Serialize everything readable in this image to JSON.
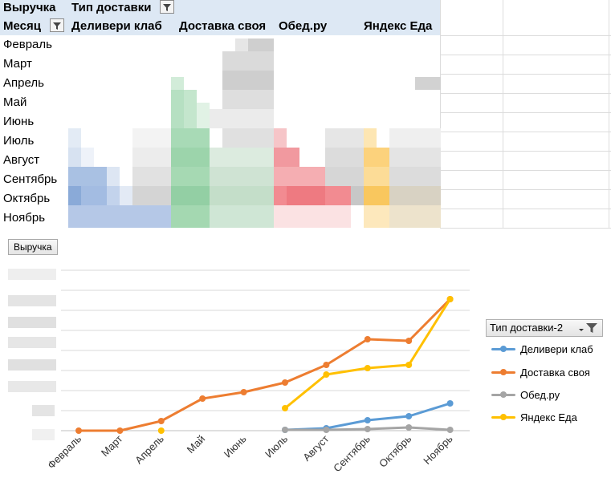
{
  "pivot": {
    "value_field": "Выручка",
    "column_field": "Тип доставки",
    "row_field": "Месяц",
    "columns": [
      "Деливери клаб",
      "Доставка своя",
      "Обед.ру",
      "Яндекс Еда"
    ],
    "months": [
      "Февраль",
      "Март",
      "Апрель",
      "Май",
      "Июнь",
      "Июль",
      "Август",
      "Сентябрь",
      "Октябрь",
      "Ноябрь"
    ]
  },
  "chart": {
    "field_button": "Выручка",
    "legend_filter_label": "Тип доставки-2",
    "legend": [
      {
        "name": "Деливери клаб",
        "color": "#5b9bd5"
      },
      {
        "name": "Доставка своя",
        "color": "#ed7d31"
      },
      {
        "name": "Обед.ру",
        "color": "#a5a5a5"
      },
      {
        "name": "Яндекс Еда",
        "color": "#ffc000"
      }
    ]
  },
  "chart_data": {
    "type": "line",
    "title": "",
    "xlabel": "",
    "ylabel": "",
    "categories": [
      "Февраль",
      "Март",
      "Апрель",
      "Май",
      "Июнь",
      "Июль",
      "Август",
      "Сентябрь",
      "Октябрь",
      "Ноябрь"
    ],
    "ylim": [
      0,
      100
    ],
    "grid": true,
    "legend_position": "right",
    "series": [
      {
        "name": "Деливери клаб",
        "color": "#5b9bd5",
        "values": [
          null,
          null,
          null,
          null,
          null,
          0.5,
          1.5,
          6.5,
          9,
          17
        ]
      },
      {
        "name": "Доставка своя",
        "color": "#ed7d31",
        "values": [
          0,
          0,
          6,
          20,
          24,
          30,
          41,
          57,
          56,
          82
        ]
      },
      {
        "name": "Обед.ру",
        "color": "#a5a5a5",
        "values": [
          null,
          null,
          null,
          null,
          null,
          0.5,
          0.5,
          1,
          2,
          0.5
        ]
      },
      {
        "name": "Яндекс Еда",
        "color": "#ffc000",
        "values": [
          null,
          null,
          0,
          null,
          null,
          14,
          35,
          39,
          41,
          82
        ]
      }
    ]
  }
}
